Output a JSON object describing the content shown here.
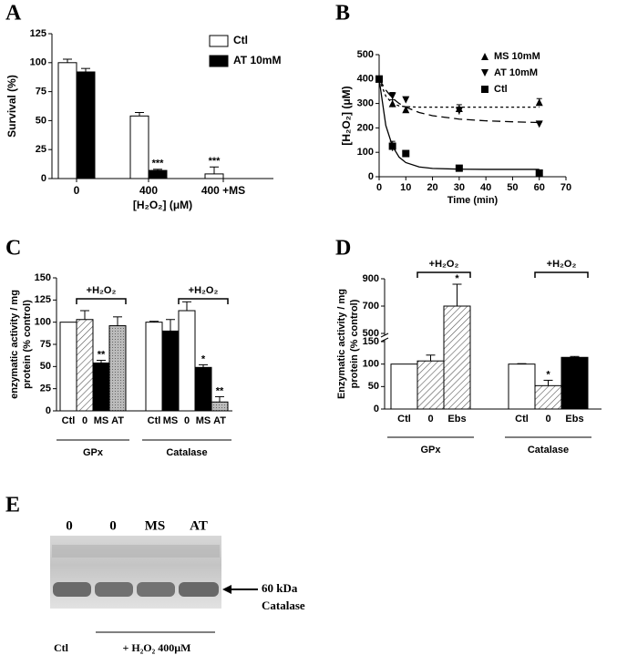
{
  "panel_labels": [
    "A",
    "B",
    "C",
    "D",
    "E"
  ],
  "chart_data": [
    {
      "type": "bar",
      "ylabel": "Survival (%)",
      "xlabel": "[H₂O₂] (μM)",
      "categories": [
        "0",
        "400",
        "400 +MS"
      ],
      "series": [
        {
          "name": "Ctl",
          "color": "#ffffff",
          "values": [
            100,
            54,
            4
          ],
          "errors": [
            3,
            3,
            6
          ],
          "annotations": [
            null,
            null,
            "***"
          ]
        },
        {
          "name": "AT 10mM",
          "color": "#000000",
          "values": [
            92,
            7,
            null
          ],
          "errors": [
            3,
            1,
            null
          ],
          "annotations": [
            null,
            "***",
            null
          ]
        }
      ],
      "ylim": [
        0,
        125
      ],
      "yticks": [
        0,
        25,
        50,
        75,
        100,
        125
      ],
      "legend": "upper right"
    },
    {
      "type": "scatter",
      "ylabel": "[H₂O₂] (μM)",
      "xlabel": "Time (min)",
      "x": [
        0,
        5,
        10,
        30,
        60
      ],
      "fit_x": [
        0,
        2.5,
        5,
        7.5,
        10,
        15,
        20,
        30,
        40,
        50,
        60
      ],
      "series": [
        {
          "name": "MS 10mM",
          "marker": "triangle-up",
          "dash": "short",
          "values": [
            400,
            300,
            275,
            280,
            305
          ],
          "errors": [
            0,
            15,
            12,
            15,
            15
          ],
          "fit": [
            400,
            330,
            300,
            290,
            287,
            285,
            285,
            285,
            285,
            285,
            285
          ]
        },
        {
          "name": "AT 10mM",
          "marker": "triangle-down",
          "dash": "long",
          "values": [
            400,
            330,
            315,
            270,
            215
          ],
          "errors": [
            0,
            15,
            10,
            15,
            8
          ],
          "fit": [
            400,
            355,
            322,
            300,
            285,
            263,
            250,
            236,
            229,
            225,
            222
          ]
        },
        {
          "name": "Ctl",
          "marker": "square",
          "dash": "solid",
          "values": [
            400,
            125,
            95,
            35,
            15
          ],
          "errors": [
            0,
            20,
            5,
            5,
            5
          ],
          "fit": [
            400,
            210,
            125,
            80,
            58,
            40,
            34,
            31,
            30,
            30,
            30
          ]
        }
      ],
      "xlim": [
        0,
        70
      ],
      "xticks": [
        0,
        10,
        20,
        30,
        40,
        50,
        60,
        70
      ],
      "ylim": [
        0,
        500
      ],
      "yticks": [
        0,
        100,
        200,
        300,
        400,
        500
      ],
      "legend": "upper right"
    },
    {
      "type": "bar",
      "ylabel": [
        "enzymatic activity / mg",
        "protein (% control)"
      ],
      "bracket": "+H₂O₂",
      "groups": [
        {
          "label": "GPx",
          "categories": [
            "Ctl",
            "0",
            "MS",
            "AT"
          ],
          "values": [
            100,
            103,
            54,
            96
          ],
          "errors": [
            0,
            10,
            3,
            10
          ],
          "fills": [
            "white",
            "hatch",
            "black",
            "dots"
          ],
          "annotations": [
            null,
            null,
            "**",
            null
          ]
        },
        {
          "label": "Catalase",
          "categories": [
            "Ctl",
            "MS",
            "0",
            "MS",
            "AT"
          ],
          "values": [
            100,
            90,
            113,
            49,
            10
          ],
          "errors": [
            1,
            13,
            10,
            3,
            6
          ],
          "fills": [
            "white",
            "black",
            "white",
            "black",
            "dots"
          ],
          "annotations": [
            null,
            null,
            null,
            "*",
            "**"
          ]
        }
      ],
      "ylim": [
        0,
        150
      ],
      "yticks": [
        0,
        25,
        50,
        75,
        100,
        125,
        150
      ]
    },
    {
      "type": "bar",
      "ylabel": [
        "Enzymatic activity / mg",
        "protein (% control)"
      ],
      "bracket": "+H₂O₂",
      "groups": [
        {
          "label": "GPx",
          "categories": [
            "Ctl",
            "0",
            "Ebs"
          ],
          "values": [
            100,
            107,
            700
          ],
          "errors": [
            0,
            13,
            160
          ],
          "fills": [
            "white",
            "hatch",
            "hatch"
          ],
          "annotations": [
            null,
            null,
            "*"
          ]
        },
        {
          "label": "Catalase",
          "categories": [
            "Ctl",
            "0",
            "Ebs"
          ],
          "values": [
            100,
            52,
            115
          ],
          "errors": [
            1,
            12,
            2
          ],
          "fills": [
            "white",
            "hatch",
            "black"
          ],
          "annotations": [
            null,
            "*",
            null
          ]
        }
      ],
      "ylim": [
        0,
        900
      ],
      "ybreak": [
        150,
        500
      ],
      "yticks": [
        0,
        50,
        100,
        150,
        500,
        700,
        900
      ]
    }
  ],
  "blot": {
    "lanes": [
      "0",
      "0",
      "MS",
      "AT"
    ],
    "marker": "60 kDa",
    "protein": "Catalase",
    "control": "Ctl",
    "treatment": "+ H₂O₂ 400µM"
  }
}
